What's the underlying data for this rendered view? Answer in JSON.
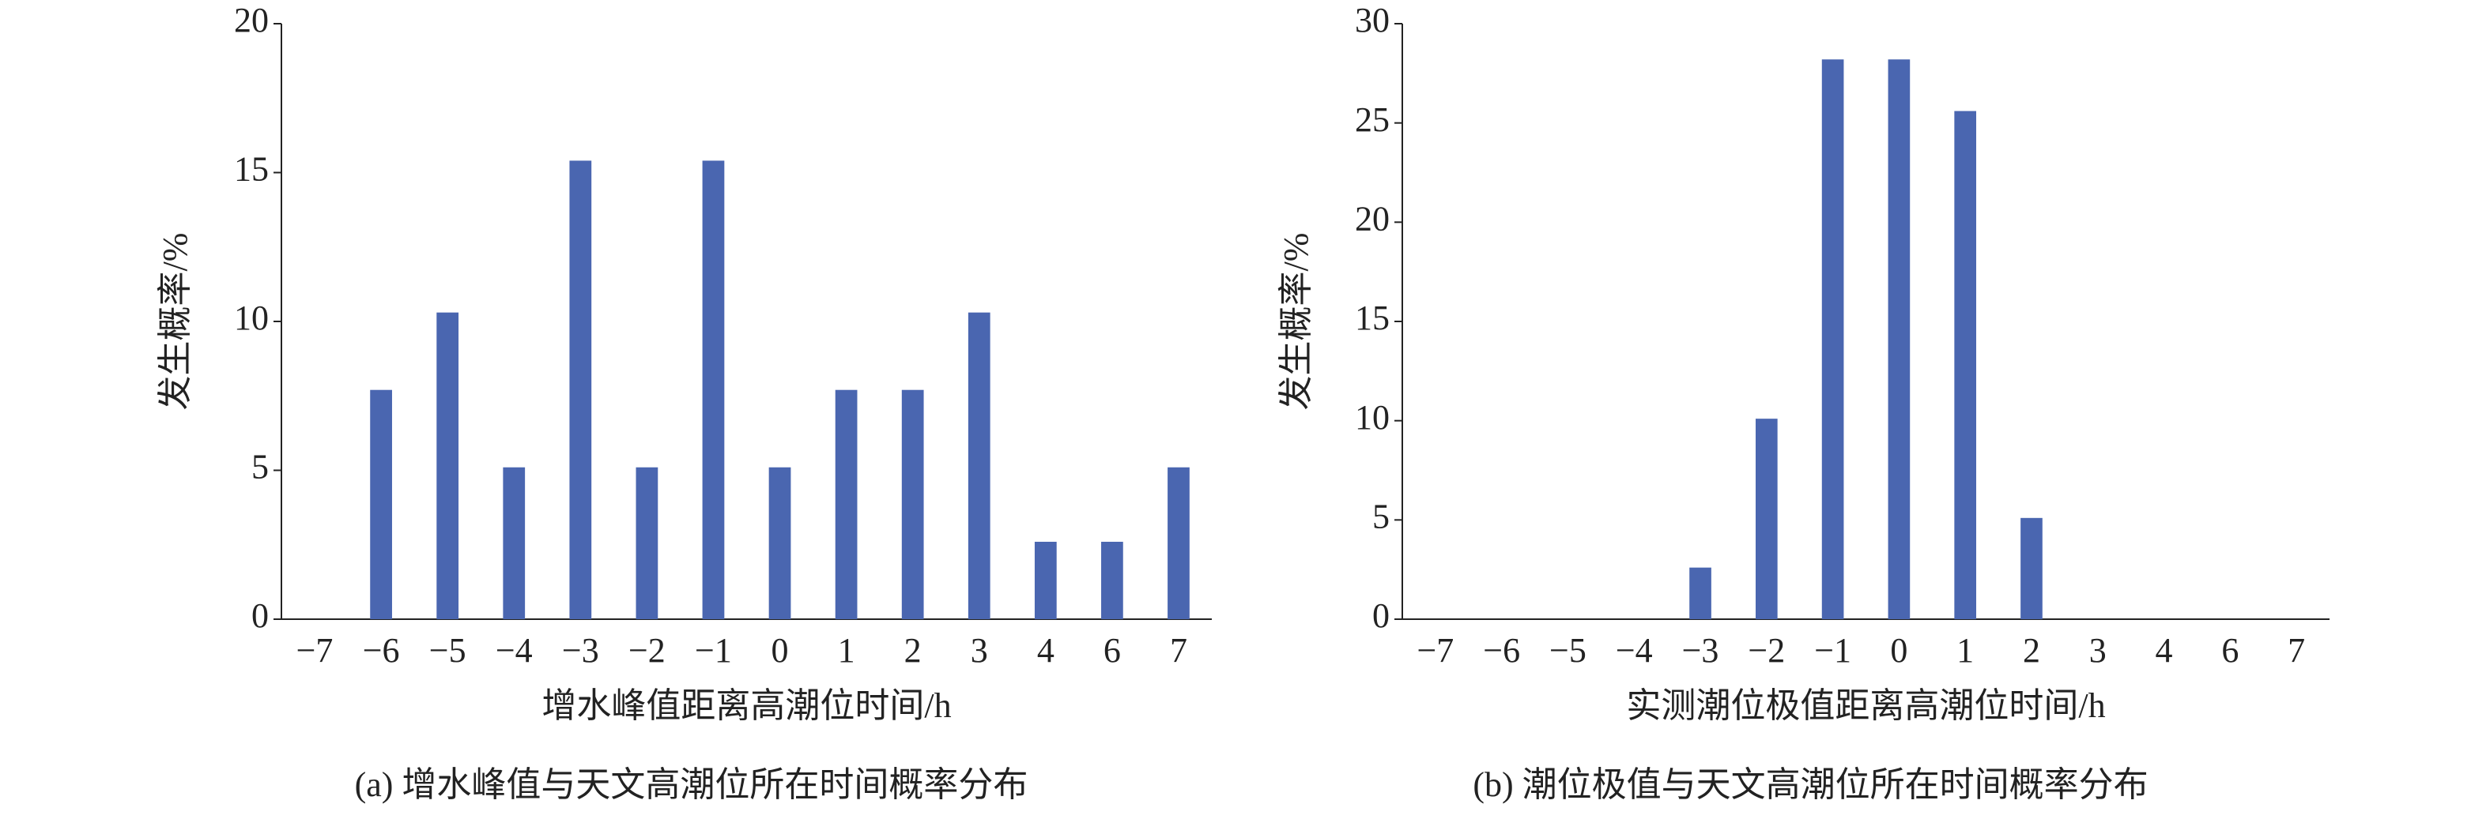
{
  "chart_data": [
    {
      "type": "bar",
      "title": "(a) 增水峰值与天文高潮位所在时间概率分布",
      "xlabel": "增水峰值距离高潮位时间/h",
      "ylabel": "发生概率/%",
      "categories": [
        "−7",
        "−6",
        "−5",
        "−4",
        "−3",
        "−2",
        "−1",
        "0",
        "1",
        "2",
        "3",
        "4",
        "6",
        "7"
      ],
      "values": [
        0,
        7.7,
        10.3,
        5.1,
        15.4,
        5.1,
        15.4,
        5.1,
        7.7,
        7.7,
        10.3,
        2.6,
        2.6,
        5.1
      ],
      "color": "#4a66b0",
      "ylim": [
        0,
        20
      ],
      "yticks": [
        0,
        5,
        10,
        15,
        20
      ]
    },
    {
      "type": "bar",
      "title": "(b) 潮位极值与天文高潮位所在时间概率分布",
      "xlabel": "实测潮位极值距离高潮位时间/h",
      "ylabel": "发生概率/%",
      "categories": [
        "−7",
        "−6",
        "−5",
        "−4",
        "−3",
        "−2",
        "−1",
        "0",
        "1",
        "2",
        "3",
        "4",
        "6",
        "7"
      ],
      "values": [
        0,
        0,
        0,
        0,
        2.6,
        10.1,
        28.2,
        28.2,
        25.6,
        5.1,
        0,
        0,
        0,
        0
      ],
      "color": "#4a66b0",
      "ylim": [
        0,
        30
      ],
      "yticks": [
        0,
        5,
        10,
        15,
        20,
        25,
        30
      ]
    }
  ]
}
